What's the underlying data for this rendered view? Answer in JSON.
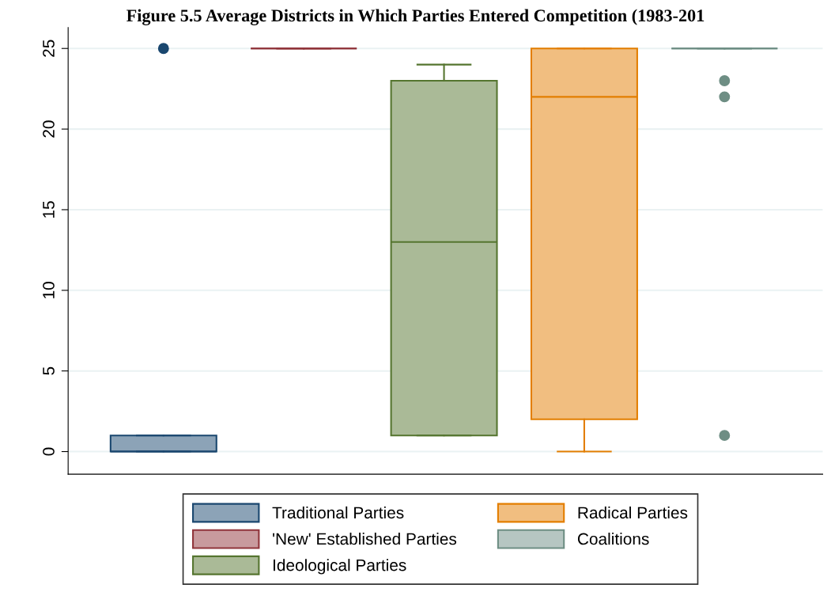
{
  "chart_data": {
    "type": "box",
    "title": "Figure 5.5 Average Districts in Which Parties Entered Competition (1983-201",
    "categories": [
      null,
      null,
      null,
      null,
      null
    ],
    "series": [
      {
        "name": "Traditional Parties",
        "color": "#1a476f",
        "boxes": [
          {
            "low": 0,
            "q1": 0,
            "median": 0,
            "q3": 1,
            "high": 1,
            "outliers": [
              25
            ]
          },
          null,
          null,
          null,
          null
        ]
      },
      {
        "name": "'New' Established Parties",
        "color": "#90353b",
        "boxes": [
          null,
          {
            "low": 25,
            "q1": 25,
            "median": 25,
            "q3": 25,
            "high": 25
          },
          null,
          null,
          null
        ]
      },
      {
        "name": "Ideological Parties",
        "color": "#55752f",
        "boxes": [
          null,
          null,
          {
            "low": 1,
            "q1": 1,
            "median": 13,
            "q3": 23,
            "high": 24
          },
          null,
          null
        ]
      },
      {
        "name": "Radical Parties",
        "color": "#e37e00",
        "boxes": [
          null,
          null,
          null,
          {
            "low": 0,
            "q1": 2,
            "median": 22,
            "q3": 25,
            "high": 25
          },
          null
        ]
      },
      {
        "name": "Coalitions",
        "color": "#6e8e84",
        "boxes": [
          null,
          null,
          null,
          null,
          {
            "low": 25,
            "q1": 25,
            "median": 25,
            "q3": 25,
            "high": 25,
            "outliers": [
              23,
              22,
              1
            ]
          }
        ]
      }
    ],
    "ylim": [
      -1.4,
      26.3
    ],
    "yticks": [
      0,
      5,
      10,
      15,
      20,
      25
    ],
    "grid": "y",
    "legend": "bottom"
  }
}
